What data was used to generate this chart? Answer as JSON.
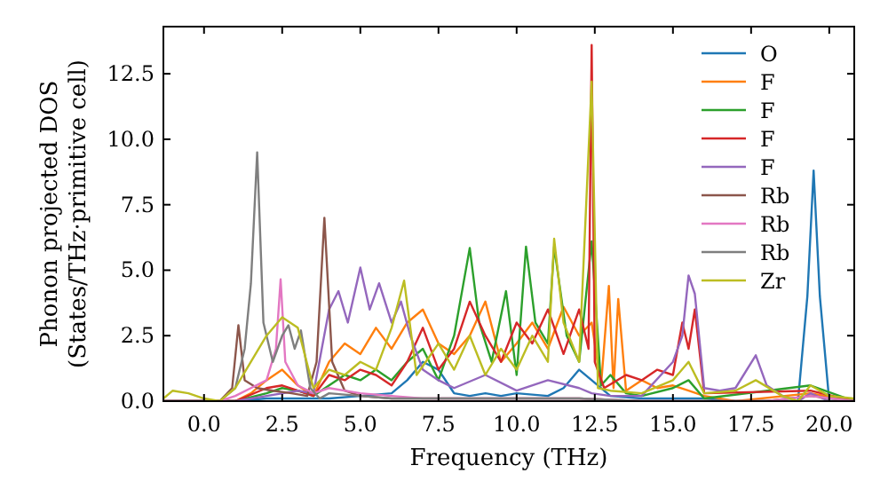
{
  "chart_data": {
    "type": "line",
    "xlabel": "Frequency (THz)",
    "ylabel": "Phonon projected DOS\n(States/THz·primitive cell)",
    "xlim": [
      -1.3,
      20.8
    ],
    "ylim": [
      0,
      14.3
    ],
    "xticks": [
      {
        "value": 0,
        "label": "0.0"
      },
      {
        "value": 2.5,
        "label": "2.5"
      },
      {
        "value": 5,
        "label": "5.0"
      },
      {
        "value": 7.5,
        "label": "7.5"
      },
      {
        "value": 10,
        "label": "10.0"
      },
      {
        "value": 12.5,
        "label": "12.5"
      },
      {
        "value": 15,
        "label": "15.0"
      },
      {
        "value": 17.5,
        "label": "17.5"
      },
      {
        "value": 20,
        "label": "20.0"
      }
    ],
    "yticks": [
      {
        "value": 0,
        "label": "0.0"
      },
      {
        "value": 2.5,
        "label": "2.5"
      },
      {
        "value": 5,
        "label": "5.0"
      },
      {
        "value": 7.5,
        "label": "7.5"
      },
      {
        "value": 10,
        "label": "10.0"
      },
      {
        "value": 12.5,
        "label": "12.5"
      }
    ],
    "grid": false,
    "legend": "top right",
    "line_style": "solid",
    "marker": "none",
    "series": [
      {
        "name": "O",
        "color": "#1f77b4",
        "x": [
          -1.3,
          0,
          1,
          2,
          3,
          4,
          5,
          6,
          6.5,
          7,
          7.5,
          8,
          8.5,
          9,
          9.5,
          10,
          11,
          11.5,
          12,
          12.4,
          13,
          14,
          15,
          16,
          17,
          18,
          19,
          19.3,
          19.5,
          19.7,
          20,
          20.8
        ],
        "values": [
          0,
          0,
          0,
          0.1,
          0.1,
          0.1,
          0.2,
          0.3,
          0.8,
          1.5,
          1.2,
          0.3,
          0.2,
          0.3,
          0.2,
          0.3,
          0.2,
          0.5,
          1.2,
          0.8,
          0.2,
          0.1,
          0.1,
          0.1,
          0,
          0,
          0,
          4,
          8.8,
          4,
          0,
          0
        ]
      },
      {
        "name": "F",
        "color": "#ff7f0e",
        "x": [
          -1.3,
          1,
          1.5,
          2,
          2.5,
          3,
          3.5,
          4,
          4.5,
          5,
          5.5,
          6,
          6.5,
          7,
          7.5,
          8,
          8.5,
          9,
          9.5,
          10,
          10.5,
          11,
          11.5,
          12,
          12.4,
          12.7,
          12.95,
          13.1,
          13.25,
          13.5,
          14,
          14.5,
          15,
          15.5,
          16,
          17,
          19.4,
          20.8
        ],
        "values": [
          0,
          0,
          0.3,
          0.8,
          1.2,
          0.6,
          0.2,
          1.5,
          2.2,
          1.8,
          2.8,
          2,
          3,
          3.5,
          2.2,
          1.8,
          2.5,
          3.8,
          1.5,
          2.2,
          3,
          2,
          3.6,
          2.5,
          3,
          0.6,
          4.4,
          0.5,
          3.9,
          0.4,
          0.8,
          0.5,
          0.6,
          0.4,
          0.2,
          0,
          0.3,
          0
        ]
      },
      {
        "name": "F",
        "color": "#2ca02c",
        "x": [
          -1.3,
          1,
          2,
          2.5,
          3,
          3.5,
          4,
          4.5,
          5,
          5.5,
          6,
          6.5,
          7,
          7.5,
          8,
          8.5,
          8.8,
          9.2,
          9.66,
          10,
          10.3,
          10.6,
          11,
          11.2,
          11.6,
          12,
          12.4,
          12.7,
          13,
          13.5,
          14,
          15,
          15.5,
          16,
          19.4,
          20.8
        ],
        "values": [
          0,
          0,
          0.3,
          0.5,
          0.4,
          0.2,
          0.6,
          1,
          0.8,
          1.2,
          0.8,
          1.5,
          2,
          0.8,
          2.5,
          5.85,
          3,
          1.5,
          4.2,
          1,
          5.9,
          3,
          2.2,
          5.9,
          2.5,
          1.5,
          6.1,
          0.6,
          1,
          0.3,
          0.2,
          0.5,
          0.8,
          0.1,
          0.6,
          0
        ]
      },
      {
        "name": "F",
        "color": "#d62728",
        "x": [
          -1.3,
          1,
          2,
          2.5,
          3,
          3.5,
          4,
          4.5,
          5,
          5.5,
          6,
          6.5,
          7,
          7.5,
          8,
          8.5,
          9,
          9.5,
          10,
          10.5,
          11,
          11.5,
          12,
          12.3,
          12.4,
          12.5,
          12.8,
          13.5,
          14,
          14.5,
          15,
          15.3,
          15.5,
          15.7,
          16,
          19.4,
          20.8
        ],
        "values": [
          0,
          0,
          0.5,
          0.6,
          0.4,
          0.2,
          1,
          0.8,
          1.2,
          1,
          0.6,
          1.5,
          2.8,
          1.2,
          2,
          3.8,
          2.5,
          1.5,
          3,
          2.2,
          3.5,
          1.8,
          3.5,
          2,
          13.6,
          1.5,
          0.5,
          1,
          0.8,
          1.2,
          1,
          3,
          2,
          3.5,
          0.3,
          0.4,
          0
        ]
      },
      {
        "name": "F",
        "color": "#9467bd",
        "x": [
          -1.3,
          1,
          2,
          3,
          3.5,
          4,
          4.3,
          4.6,
          5,
          5.3,
          5.6,
          6,
          6.3,
          6.6,
          7,
          7.5,
          8,
          9,
          10,
          11,
          12,
          12.4,
          13,
          14,
          15,
          15.3,
          15.5,
          15.7,
          16,
          16.5,
          17,
          17.65,
          18,
          18.5,
          19,
          19.4,
          20,
          20.8
        ],
        "values": [
          0,
          0,
          0.2,
          0.4,
          0.3,
          3.5,
          4.2,
          3,
          5.1,
          3.5,
          4.5,
          3,
          3.8,
          2.5,
          1.2,
          0.8,
          0.5,
          1,
          0.4,
          0.8,
          0.5,
          0.3,
          0.2,
          0.2,
          1.5,
          2.5,
          4.8,
          4.1,
          0.5,
          0.4,
          0.5,
          1.75,
          0.6,
          0.2,
          0,
          0.3,
          0,
          0
        ]
      },
      {
        "name": "Rb",
        "color": "#8c564b",
        "x": [
          -1.3,
          0.5,
          0.9,
          1.1,
          1.3,
          1.7,
          2.2,
          2.8,
          3.3,
          3.6,
          3.85,
          4.1,
          4.5,
          5,
          6,
          8,
          10,
          12,
          14,
          16,
          18,
          19.4,
          20.8
        ],
        "values": [
          0,
          0,
          0.5,
          2.9,
          0.8,
          0.5,
          0.4,
          0.3,
          0.2,
          1.5,
          7,
          1.5,
          0.4,
          0.2,
          0.1,
          0.1,
          0.1,
          0.1,
          0,
          0,
          0,
          0.2,
          0
        ]
      },
      {
        "name": "Rb",
        "color": "#e377c2",
        "x": [
          -1.3,
          0.5,
          1,
          1.5,
          2,
          2.3,
          2.45,
          2.6,
          3,
          3.5,
          4,
          5,
          6,
          7,
          8,
          10,
          12,
          14,
          16,
          18,
          19.4,
          20.8
        ],
        "values": [
          0,
          0,
          0.2,
          0.5,
          0.8,
          2,
          4.65,
          1.5,
          0.6,
          0.3,
          0.5,
          0.3,
          0.2,
          0.1,
          0.1,
          0.1,
          0.1,
          0,
          0,
          0,
          0.2,
          0
        ]
      },
      {
        "name": "Rb",
        "color": "#7f7f7f",
        "x": [
          -1.3,
          0.5,
          1,
          1.3,
          1.5,
          1.7,
          1.9,
          2.2,
          2.5,
          2.7,
          2.9,
          3.1,
          3.4,
          3.7,
          4,
          5,
          6,
          8,
          10,
          12,
          14,
          16,
          18,
          20.8
        ],
        "values": [
          0,
          0,
          0.5,
          2,
          4.5,
          9.5,
          3,
          1.5,
          2.5,
          2.9,
          2,
          2.7,
          0.5,
          0.1,
          0.3,
          0.2,
          0.1,
          0.1,
          0.1,
          0.1,
          0,
          0,
          0,
          0
        ]
      },
      {
        "name": "Zr",
        "color": "#bcbd22",
        "x": [
          -1.3,
          -1,
          -0.5,
          0,
          0.5,
          1,
          1.5,
          2,
          2.5,
          3,
          3.5,
          4,
          4.5,
          5,
          5.5,
          6,
          6.4,
          6.8,
          7.5,
          8,
          8.5,
          9,
          9.5,
          10,
          10.5,
          11,
          11.2,
          11.5,
          12,
          12.4,
          12.6,
          13,
          14,
          15,
          15.5,
          16,
          17,
          17.65,
          18.5,
          19,
          19.4,
          20,
          20.8
        ],
        "values": [
          0.1,
          0.4,
          0.3,
          0.1,
          0,
          0.5,
          1.5,
          2.5,
          3.2,
          2.8,
          0.5,
          1.2,
          1,
          1.5,
          1.2,
          2.8,
          4.6,
          1,
          2.2,
          1.2,
          2.5,
          1,
          2,
          1.2,
          2.5,
          1.5,
          6.2,
          3,
          1.5,
          12.2,
          0.5,
          0.4,
          0.3,
          0.8,
          1.5,
          0.3,
          0.4,
          0.8,
          0.2,
          0,
          0.6,
          0.2,
          0.1
        ]
      }
    ]
  }
}
